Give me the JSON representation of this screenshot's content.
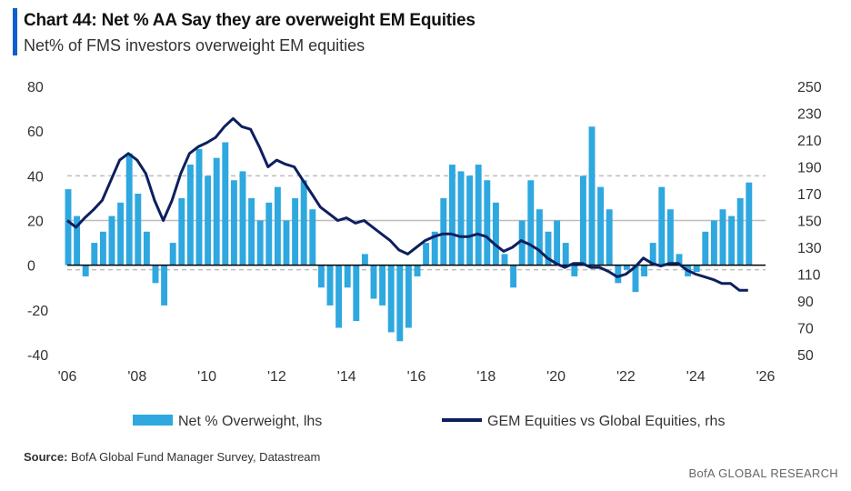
{
  "title": "Chart 44: Net % AA Say they are overweight EM Equities",
  "subtitle": "Net% of FMS investors overweight EM equities",
  "source_label": "Source:",
  "source_text": "BofA Global Fund Manager Survey, Datastream",
  "footer": "BofA GLOBAL RESEARCH",
  "colors": {
    "bars": "#2ea8df",
    "line": "#0d1f5e",
    "zero": "#000000",
    "ref": "#bdbdbd"
  },
  "chart_data": {
    "type": "bar+line",
    "x_ticks": [
      "'06",
      "'08",
      "'10",
      "'12",
      "'14",
      "'16",
      "'18",
      "'20",
      "'22",
      "'24",
      "'26"
    ],
    "xlim": [
      2006,
      2026
    ],
    "y_left": {
      "ticks": [
        "80",
        "60",
        "40",
        "20",
        "0",
        "-20",
        "-40"
      ],
      "ylim": [
        -40,
        80
      ]
    },
    "y_right": {
      "ticks": [
        "250",
        "230",
        "210",
        "190",
        "170",
        "150",
        "130",
        "110",
        "90",
        "70",
        "50"
      ],
      "ylim": [
        50,
        250
      ]
    },
    "reference_lines_lhs": [
      40,
      20,
      -2
    ],
    "reference_line_styles": [
      "dashed",
      "solid",
      "dashed"
    ],
    "series": [
      {
        "name": "Net % Overweight, lhs",
        "axis": "left",
        "kind": "bar",
        "x": [
          2006.0,
          2006.25,
          2006.5,
          2006.75,
          2007.0,
          2007.25,
          2007.5,
          2007.75,
          2008.0,
          2008.25,
          2008.5,
          2008.75,
          2009.0,
          2009.25,
          2009.5,
          2009.75,
          2010.0,
          2010.25,
          2010.5,
          2010.75,
          2011.0,
          2011.25,
          2011.5,
          2011.75,
          2012.0,
          2012.25,
          2012.5,
          2012.75,
          2013.0,
          2013.25,
          2013.5,
          2013.75,
          2014.0,
          2014.25,
          2014.5,
          2014.75,
          2015.0,
          2015.25,
          2015.5,
          2015.75,
          2016.0,
          2016.25,
          2016.5,
          2016.75,
          2017.0,
          2017.25,
          2017.5,
          2017.75,
          2018.0,
          2018.25,
          2018.5,
          2018.75,
          2019.0,
          2019.25,
          2019.5,
          2019.75,
          2020.0,
          2020.25,
          2020.5,
          2020.75,
          2021.0,
          2021.25,
          2021.5,
          2021.75,
          2022.0,
          2022.25,
          2022.5,
          2022.75,
          2023.0,
          2023.25,
          2023.5,
          2023.75,
          2024.0,
          2024.25,
          2024.5,
          2024.75,
          2025.0,
          2025.25,
          2025.5
        ],
        "values": [
          34,
          22,
          -5,
          10,
          15,
          22,
          28,
          50,
          32,
          15,
          -8,
          -18,
          10,
          30,
          45,
          52,
          40,
          48,
          55,
          38,
          42,
          30,
          20,
          28,
          35,
          20,
          30,
          38,
          25,
          -10,
          -18,
          -28,
          -10,
          -25,
          5,
          -15,
          -18,
          -30,
          -34,
          -28,
          -5,
          10,
          15,
          30,
          45,
          42,
          40,
          45,
          38,
          28,
          5,
          -10,
          20,
          38,
          25,
          15,
          20,
          10,
          -5,
          40,
          62,
          35,
          25,
          -8,
          -2,
          -12,
          -5,
          10,
          35,
          25,
          5,
          -5,
          -3,
          15,
          20,
          25,
          22,
          30,
          37
        ]
      },
      {
        "name": "GEM Equities vs Global Equities, rhs",
        "axis": "right",
        "kind": "line",
        "x": [
          2006.0,
          2006.25,
          2006.5,
          2006.75,
          2007.0,
          2007.25,
          2007.5,
          2007.75,
          2008.0,
          2008.25,
          2008.5,
          2008.75,
          2009.0,
          2009.25,
          2009.5,
          2009.75,
          2010.0,
          2010.25,
          2010.5,
          2010.75,
          2011.0,
          2011.25,
          2011.5,
          2011.75,
          2012.0,
          2012.25,
          2012.5,
          2012.75,
          2013.0,
          2013.25,
          2013.5,
          2013.75,
          2014.0,
          2014.25,
          2014.5,
          2014.75,
          2015.0,
          2015.25,
          2015.5,
          2015.75,
          2016.0,
          2016.25,
          2016.5,
          2016.75,
          2017.0,
          2017.25,
          2017.5,
          2017.75,
          2018.0,
          2018.25,
          2018.5,
          2018.75,
          2019.0,
          2019.25,
          2019.5,
          2019.75,
          2020.0,
          2020.25,
          2020.5,
          2020.75,
          2021.0,
          2021.25,
          2021.5,
          2021.75,
          2022.0,
          2022.25,
          2022.5,
          2022.75,
          2023.0,
          2023.25,
          2023.5,
          2023.75,
          2024.0,
          2024.25,
          2024.5,
          2024.75,
          2025.0,
          2025.25,
          2025.5
        ],
        "values": [
          150,
          145,
          152,
          158,
          165,
          180,
          195,
          200,
          195,
          185,
          165,
          150,
          165,
          185,
          200,
          205,
          208,
          212,
          220,
          226,
          220,
          218,
          205,
          190,
          195,
          192,
          190,
          180,
          170,
          160,
          155,
          150,
          152,
          148,
          150,
          145,
          140,
          135,
          128,
          125,
          130,
          135,
          138,
          140,
          140,
          138,
          138,
          140,
          138,
          132,
          127,
          130,
          135,
          132,
          128,
          122,
          118,
          115,
          118,
          118,
          115,
          115,
          112,
          108,
          110,
          115,
          122,
          118,
          116,
          118,
          118,
          113,
          110,
          108,
          106,
          103,
          103,
          98,
          98
        ]
      }
    ]
  }
}
